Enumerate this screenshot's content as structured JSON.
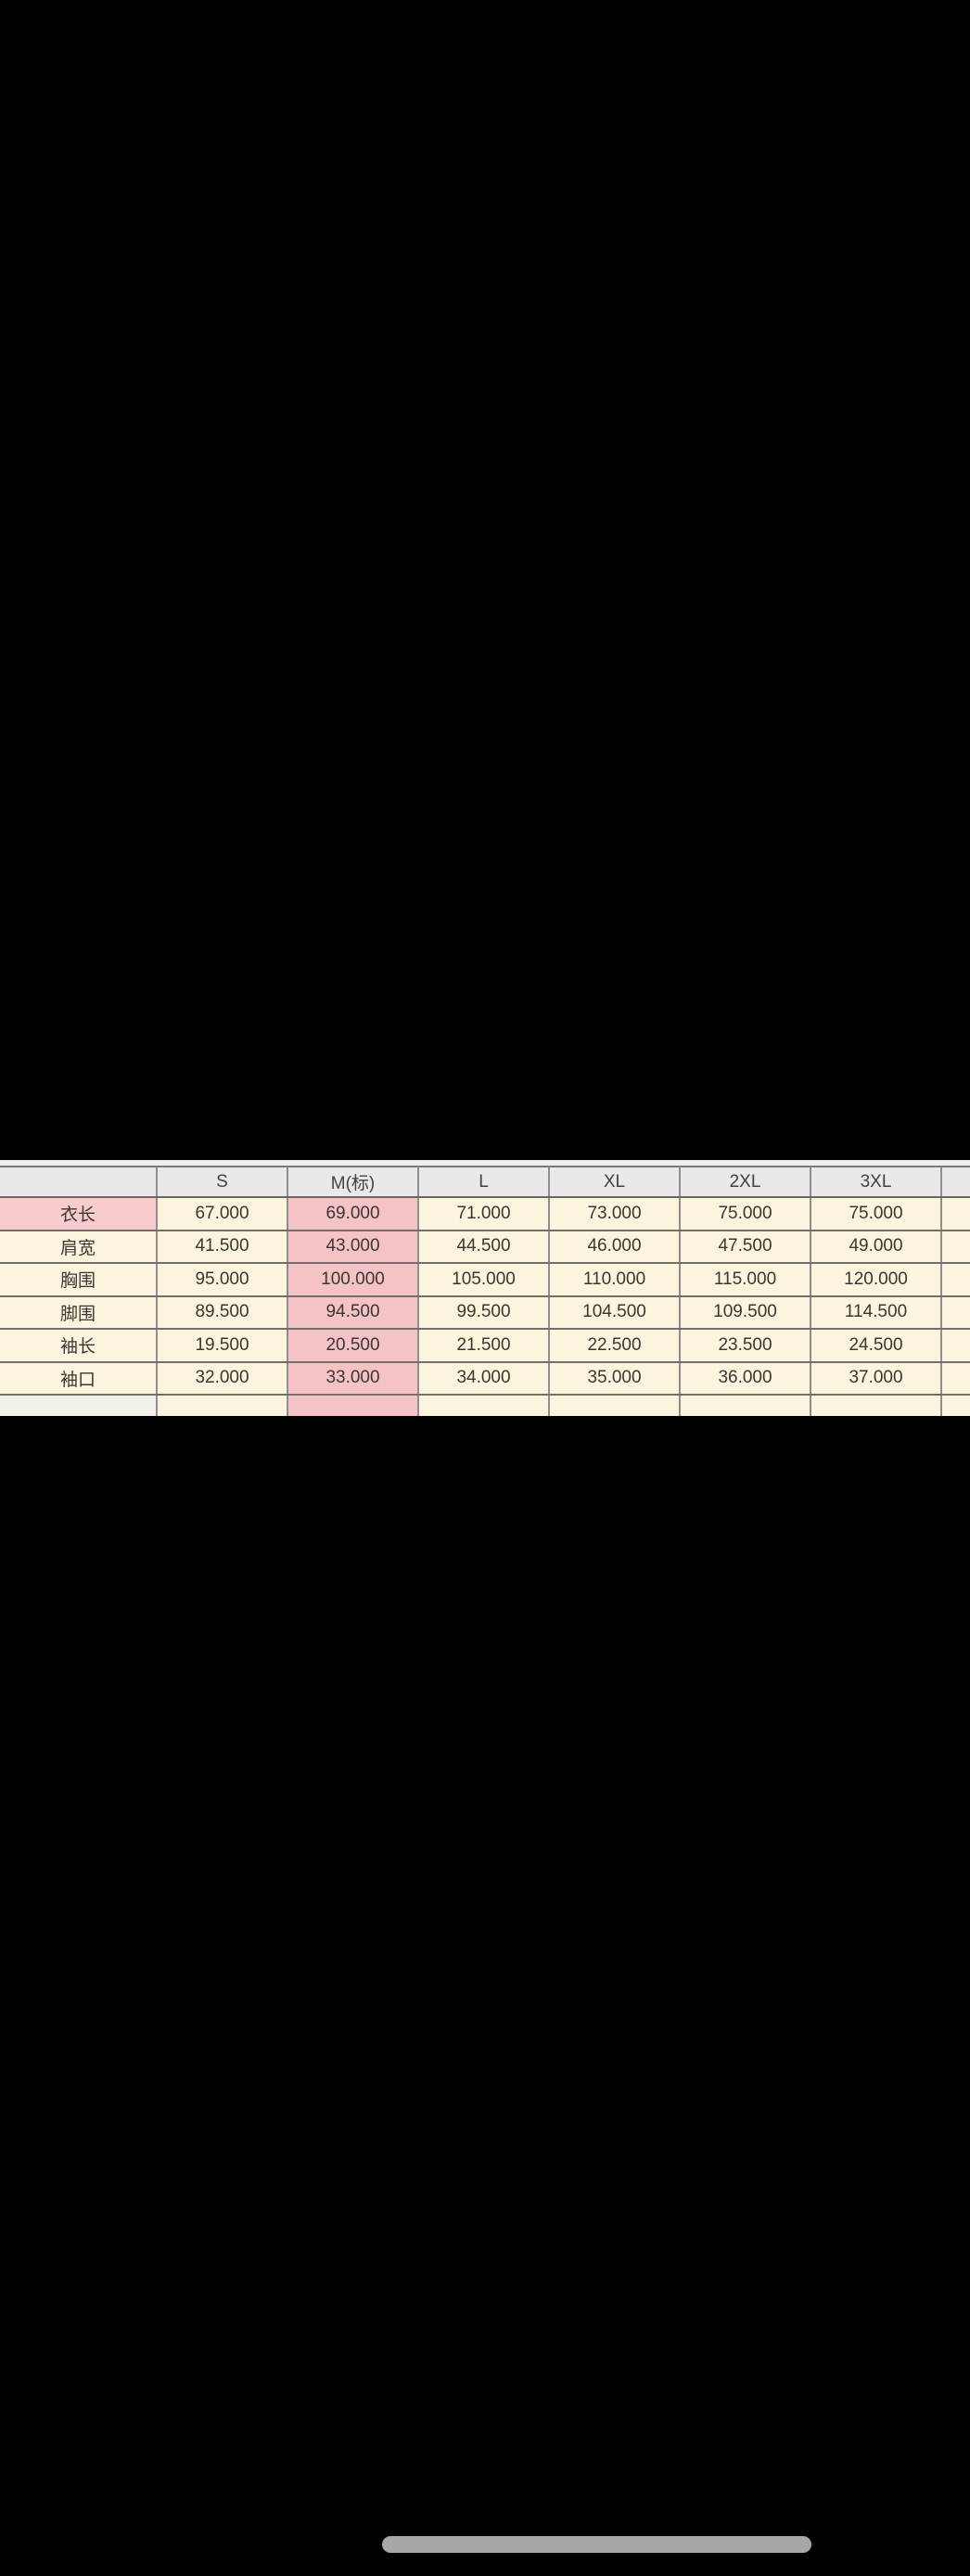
{
  "colors": {
    "background": "#000000",
    "header_bg": "#eae8e9",
    "cream_cell": "#faf5dc",
    "pink_column": "#f5c3c6",
    "pink_row_label": "#f8cbcc",
    "grid_line": "#716e6c",
    "home_indicator": "#a8a7a8"
  },
  "size_chart": {
    "column_headers": [
      "",
      "S",
      "M(标)",
      "L",
      "XL",
      "2XL",
      "3XL"
    ],
    "highlighted_column": "M(标)",
    "highlighted_row_label": "衣长",
    "rows": [
      {
        "label": "衣长",
        "values": [
          "67.000",
          "69.000",
          "71.000",
          "73.000",
          "75.000",
          "75.000"
        ]
      },
      {
        "label": "肩宽",
        "values": [
          "41.500",
          "43.000",
          "44.500",
          "46.000",
          "47.500",
          "49.000"
        ]
      },
      {
        "label": "胸围",
        "values": [
          "95.000",
          "100.000",
          "105.000",
          "110.000",
          "115.000",
          "120.000"
        ]
      },
      {
        "label": "脚围",
        "values": [
          "89.500",
          "94.500",
          "99.500",
          "104.500",
          "109.500",
          "114.500"
        ]
      },
      {
        "label": "袖长",
        "values": [
          "19.500",
          "20.500",
          "21.500",
          "22.500",
          "23.500",
          "24.500"
        ]
      },
      {
        "label": "袖口",
        "values": [
          "32.000",
          "33.000",
          "34.000",
          "35.000",
          "36.000",
          "37.000"
        ]
      }
    ]
  }
}
